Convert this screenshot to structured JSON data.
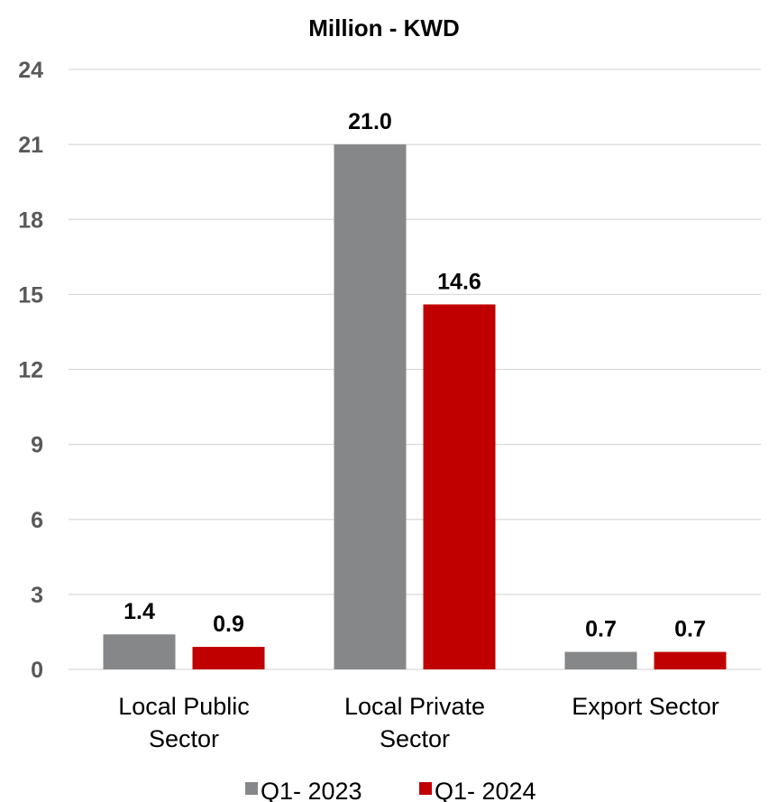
{
  "chart_data": {
    "type": "bar",
    "title": "Million - KWD",
    "categories": [
      [
        "Local Public",
        "Sector"
      ],
      [
        "Local Private",
        "Sector"
      ],
      [
        "Export Sector"
      ]
    ],
    "series": [
      {
        "name": "Q1- 2023",
        "color": "#868789",
        "values": [
          1.4,
          21.0,
          0.7
        ],
        "labels": [
          "1.4",
          "21.0",
          "0.7"
        ]
      },
      {
        "name": "Q1- 2024",
        "color": "#c00000",
        "values": [
          0.9,
          14.6,
          0.7
        ],
        "labels": [
          "0.9",
          "14.6",
          "0.7"
        ]
      }
    ],
    "yticks": [
      "0",
      "3",
      "6",
      "9",
      "12",
      "15",
      "18",
      "21",
      "24"
    ],
    "ylim": [
      0,
      24
    ],
    "grid": true,
    "legend_position": "bottom"
  }
}
